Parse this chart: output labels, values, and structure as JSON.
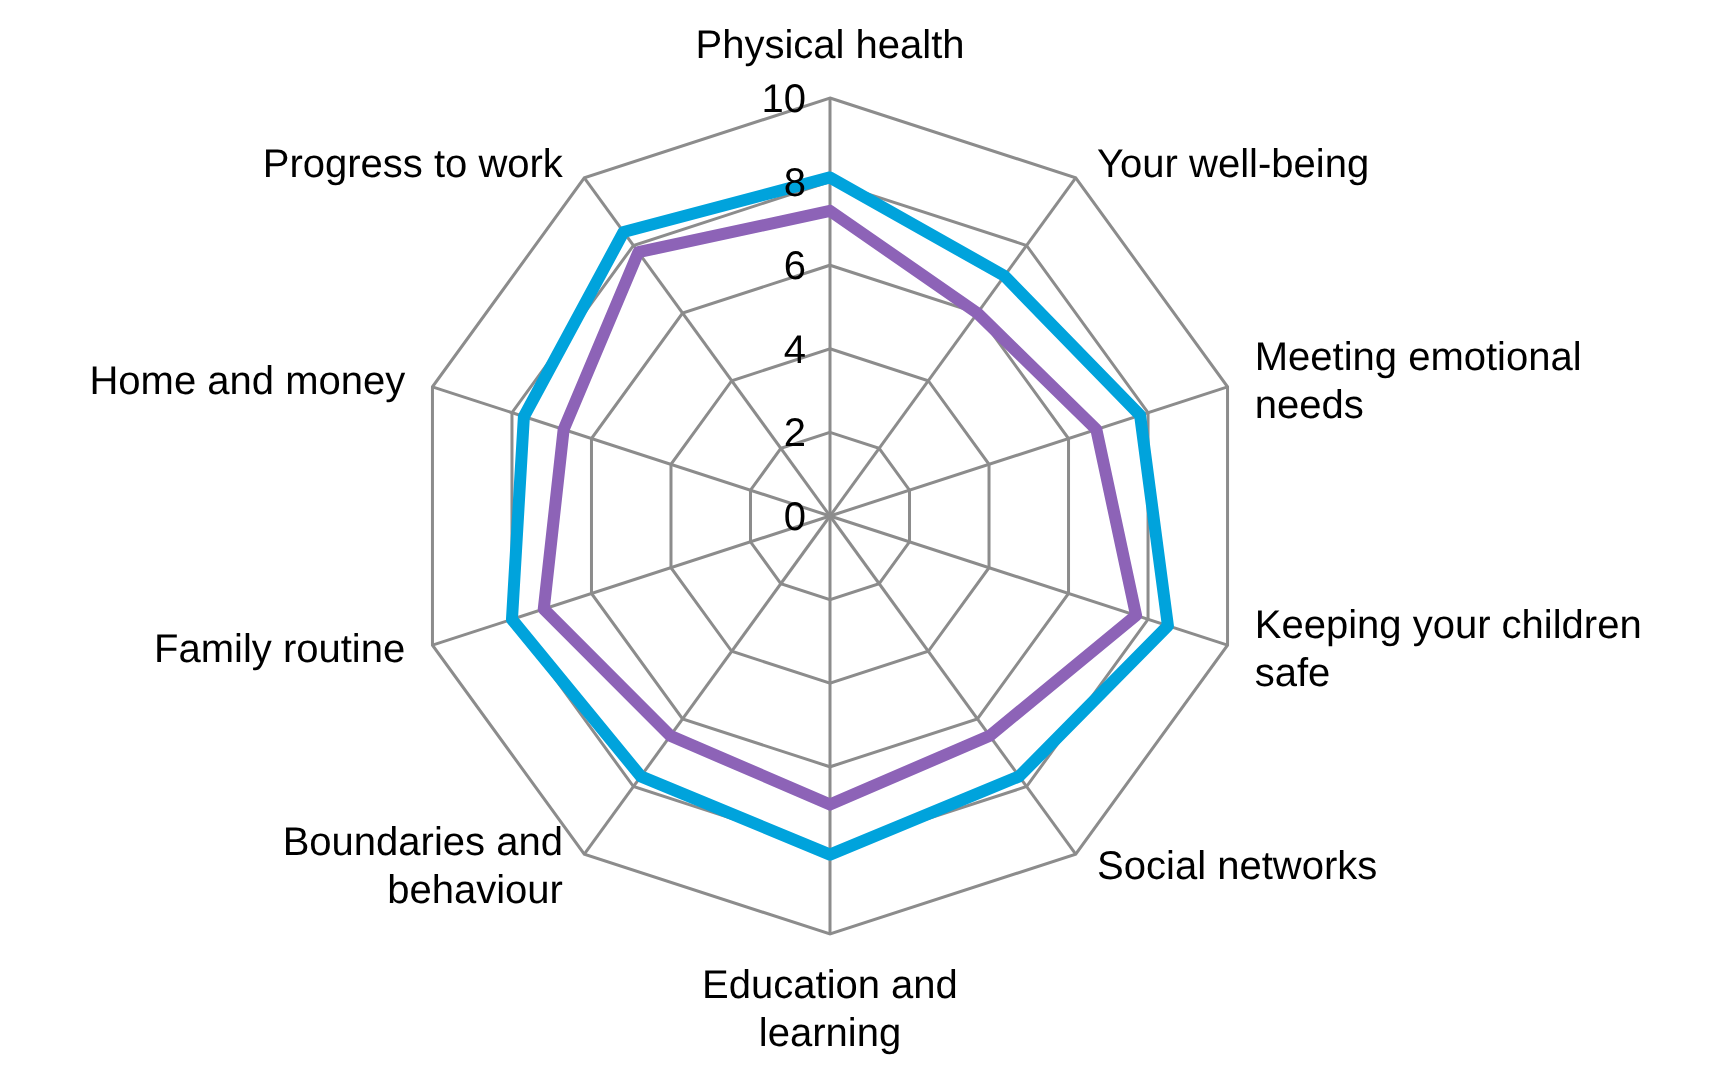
{
  "chart_data": {
    "type": "radar",
    "categories": [
      "Physical health",
      "Your well-being",
      "Meeting emotional needs",
      "Keeping your children safe",
      "Social networks",
      "Education and learning",
      "Boundaries and behaviour",
      "Family routine",
      "Home and money",
      "Progress to work"
    ],
    "series": [
      {
        "color": "#00a3dc",
        "values": [
          8.1,
          7.1,
          7.8,
          8.5,
          7.7,
          8.1,
          7.7,
          8.0,
          7.7,
          8.4
        ]
      },
      {
        "color": "#8d63b7",
        "values": [
          7.3,
          6.0,
          6.7,
          7.7,
          6.5,
          6.9,
          6.5,
          7.2,
          6.7,
          7.8
        ]
      }
    ],
    "ylim": [
      0,
      10
    ],
    "yticks": [
      0,
      2,
      4,
      6,
      8,
      10
    ],
    "grid": true,
    "legend": false,
    "marker": "none"
  }
}
